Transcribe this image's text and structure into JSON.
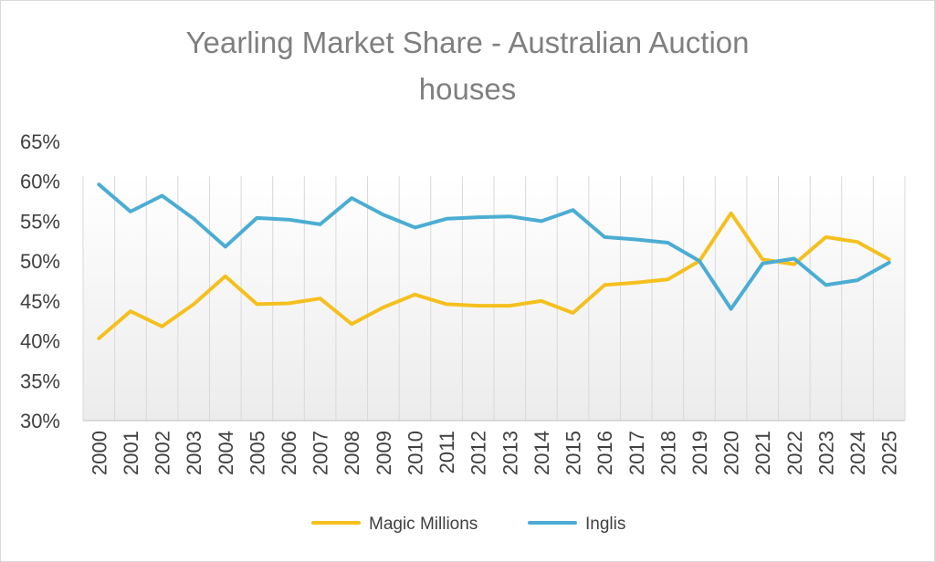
{
  "chart_data": {
    "type": "line",
    "title_line1": "Yearling Market Share - Australian Auction",
    "title_line2": "houses",
    "xlabel": "",
    "ylabel": "",
    "categories": [
      "2000",
      "2001",
      "2002",
      "2003",
      "2004",
      "2005",
      "2006",
      "2007",
      "2008",
      "2009",
      "2010",
      "2011",
      "2012",
      "2013",
      "2014",
      "2015",
      "2016",
      "2017",
      "2018",
      "2019",
      "2020",
      "2021",
      "2022",
      "2023",
      "2024",
      "2025"
    ],
    "ylim": [
      0.3,
      0.65
    ],
    "ytick_labels": [
      "30%",
      "35%",
      "40%",
      "45%",
      "50%",
      "55%",
      "60%",
      "65%"
    ],
    "grid": "vertical",
    "legend_position": "bottom",
    "series": [
      {
        "name": "Magic Millions",
        "color": "#F5C01E",
        "values": [
          0.403,
          0.437,
          0.418,
          0.446,
          0.481,
          0.446,
          0.447,
          0.453,
          0.421,
          0.442,
          0.458,
          0.446,
          0.444,
          0.444,
          0.45,
          0.435,
          0.47,
          0.473,
          0.477,
          0.5,
          0.56,
          0.502,
          0.496,
          0.53,
          0.524,
          0.502
        ]
      },
      {
        "name": "Inglis",
        "color": "#4BADD3",
        "values": [
          0.596,
          0.562,
          0.582,
          0.553,
          0.518,
          0.554,
          0.552,
          0.546,
          0.579,
          0.558,
          0.542,
          0.553,
          0.555,
          0.556,
          0.55,
          0.564,
          0.53,
          0.527,
          0.523,
          0.5,
          0.44,
          0.497,
          0.503,
          0.47,
          0.476,
          0.498
        ]
      }
    ]
  }
}
